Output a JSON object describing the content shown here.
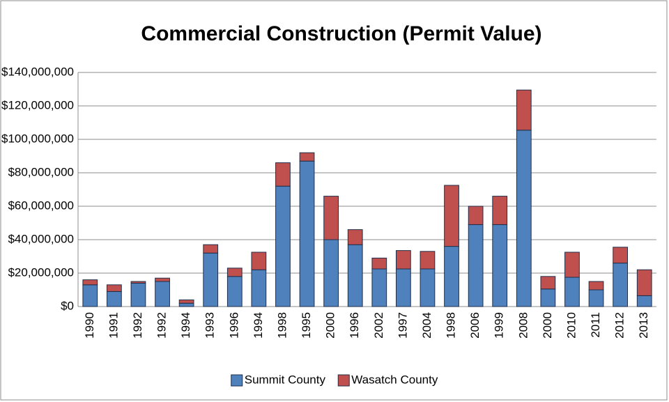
{
  "chart_data": {
    "type": "stacked-bar",
    "title": "Commercial Construction (Permit Value)",
    "categories": [
      "1990",
      "1991",
      "1992",
      "1992",
      "1994",
      "1993",
      "1996",
      "1994",
      "1998",
      "1995",
      "2000",
      "1996",
      "2002",
      "1997",
      "2004",
      "1998",
      "2006",
      "1999",
      "2008",
      "2000",
      "2010",
      "2011",
      "2012",
      "2013"
    ],
    "series": [
      {
        "name": "Summit County",
        "color": "#4f81bd",
        "values": [
          13000000,
          9000000,
          14000000,
          15000000,
          2000000,
          32000000,
          18000000,
          22000000,
          72000000,
          87000000,
          40000000,
          37000000,
          22500000,
          22500000,
          22500000,
          36000000,
          49000000,
          49000000,
          105500000,
          10500000,
          17500000,
          10000000,
          26000000,
          6500000
        ]
      },
      {
        "name": "Wasatch County",
        "color": "#c0504d",
        "values": [
          3000000,
          4000000,
          1000000,
          2000000,
          2000000,
          5000000,
          5000000,
          10500000,
          14000000,
          5000000,
          26000000,
          9000000,
          6500000,
          11000000,
          10500000,
          36500000,
          11000000,
          17000000,
          24000000,
          7500000,
          15000000,
          5000000,
          9500000,
          15500000
        ]
      }
    ],
    "ylim": [
      0,
      140000000
    ],
    "yticks": [
      {
        "value": 0,
        "label": "$0"
      },
      {
        "value": 20000000,
        "label": "$20,000,000"
      },
      {
        "value": 40000000,
        "label": "$40,000,000"
      },
      {
        "value": 60000000,
        "label": "$60,000,000"
      },
      {
        "value": 80000000,
        "label": "$80,000,000"
      },
      {
        "value": 100000000,
        "label": "$100,000,000"
      },
      {
        "value": 120000000,
        "label": "$120,000,000"
      },
      {
        "value": 140000000,
        "label": "$140,000,000"
      }
    ],
    "grid": true,
    "legend": "bottom"
  }
}
